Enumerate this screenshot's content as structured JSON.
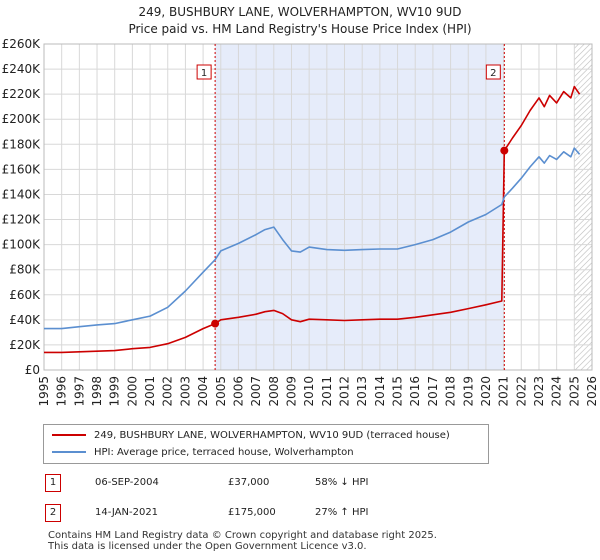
{
  "title_line1": "249, BUSHBURY LANE, WOLVERHAMPTON, WV10 9UD",
  "title_line2": "Price paid vs. HM Land Registry's House Price Index (HPI)",
  "colors": {
    "property": "#cc0000",
    "hpi": "#5b8fd0",
    "shade": "#e6ecfa",
    "grid": "#d8d8d8",
    "vline": "#cc0000"
  },
  "legend": {
    "property_label": "249, BUSHBURY LANE, WOLVERHAMPTON, WV10 9UD (terraced house)",
    "hpi_label": "HPI: Average price, terraced house, Wolverhampton"
  },
  "sales": [
    {
      "num": "1",
      "date": "06-SEP-2004",
      "price": "£37,000",
      "hpi_delta": "58% ↓ HPI",
      "year": 2004.68,
      "value": 37000
    },
    {
      "num": "2",
      "date": "14-JAN-2021",
      "price": "£175,000",
      "hpi_delta": "27% ↑ HPI",
      "year": 2021.04,
      "value": 175000
    }
  ],
  "footer_line1": "Contains HM Land Registry data © Crown copyright and database right 2025.",
  "footer_line2": "This data is licensed under the Open Government Licence v3.0.",
  "chart_data": {
    "type": "line",
    "title": "249, BUSHBURY LANE, WOLVERHAMPTON, WV10 9UD — Price paid vs. HM Land Registry's House Price Index (HPI)",
    "xlabel": "",
    "ylabel": "",
    "xlim": [
      1995,
      2026
    ],
    "ylim": [
      0,
      260000
    ],
    "x_ticks": [
      1995,
      1996,
      1997,
      1998,
      1999,
      2000,
      2001,
      2002,
      2003,
      2004,
      2005,
      2006,
      2007,
      2008,
      2009,
      2010,
      2011,
      2012,
      2013,
      2014,
      2015,
      2016,
      2017,
      2018,
      2019,
      2020,
      2021,
      2022,
      2023,
      2024,
      2025,
      2026
    ],
    "y_ticks": [
      0,
      20000,
      40000,
      60000,
      80000,
      100000,
      120000,
      140000,
      160000,
      180000,
      200000,
      220000,
      240000,
      260000
    ],
    "y_tick_labels": [
      "£0",
      "£20K",
      "£40K",
      "£60K",
      "£80K",
      "£100K",
      "£120K",
      "£140K",
      "£160K",
      "£180K",
      "£200K",
      "£220K",
      "£240K",
      "£260K"
    ],
    "shaded_range": [
      2004.68,
      2021.04
    ],
    "hatched_from": 2025.0,
    "series": [
      {
        "name": "249, BUSHBURY LANE, WOLVERHAMPTON, WV10 9UD (terraced house)",
        "color": "#cc0000",
        "x": [
          1995,
          1996,
          1997,
          1998,
          1999,
          2000,
          2001,
          2002,
          2003,
          2004,
          2004.68,
          2005,
          2006,
          2007,
          2007.5,
          2008,
          2008.5,
          2009,
          2009.5,
          2010,
          2011,
          2012,
          2013,
          2014,
          2015,
          2016,
          2017,
          2018,
          2019,
          2020,
          2020.9,
          2021.04,
          2021.5,
          2022,
          2022.5,
          2023,
          2023.3,
          2023.6,
          2024,
          2024.4,
          2024.8,
          2025,
          2025.3
        ],
        "values": [
          14000,
          14000,
          14500,
          15000,
          15500,
          17000,
          18000,
          21000,
          26000,
          33000,
          37000,
          40000,
          42000,
          44500,
          46500,
          47500,
          45000,
          40000,
          38500,
          40500,
          40000,
          39500,
          40000,
          40500,
          40500,
          42000,
          44000,
          46000,
          49000,
          52000,
          55000,
          175000,
          185000,
          195000,
          207000,
          217000,
          210000,
          219000,
          213000,
          222000,
          217000,
          226000,
          220000
        ]
      },
      {
        "name": "HPI: Average price, terraced house, Wolverhampton",
        "color": "#5b8fd0",
        "x": [
          1995,
          1996,
          1997,
          1998,
          1999,
          2000,
          2001,
          2002,
          2003,
          2004,
          2004.68,
          2005,
          2006,
          2007,
          2007.5,
          2008,
          2008.5,
          2009,
          2009.5,
          2010,
          2011,
          2012,
          2013,
          2014,
          2015,
          2016,
          2017,
          2018,
          2019,
          2020,
          2020.9,
          2021.04,
          2021.5,
          2022,
          2022.5,
          2023,
          2023.3,
          2023.6,
          2024,
          2024.4,
          2024.8,
          2025,
          2025.3
        ],
        "values": [
          33000,
          33000,
          34500,
          36000,
          37000,
          40000,
          43000,
          50000,
          63000,
          78000,
          88000,
          95000,
          101000,
          108000,
          112000,
          114000,
          104000,
          95000,
          94000,
          98000,
          96000,
          95500,
          96000,
          96500,
          96500,
          100000,
          104000,
          110000,
          118000,
          124000,
          132000,
          138000,
          145000,
          153000,
          162000,
          170000,
          165000,
          171000,
          168000,
          174000,
          170000,
          177000,
          172000
        ]
      }
    ]
  }
}
